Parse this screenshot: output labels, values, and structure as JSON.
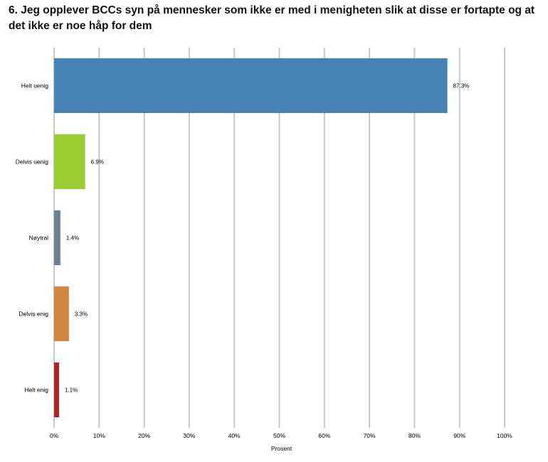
{
  "chart_data": {
    "type": "bar",
    "orientation": "horizontal",
    "title": "6. Jeg opplever BCCs syn på mennesker som ikke er med i menigheten slik at disse er fortapte og at det ikke er noe håp for dem",
    "xlabel": "Prosent",
    "ylabel": "",
    "xlim": [
      0,
      100
    ],
    "x_ticks": [
      0,
      10,
      20,
      30,
      40,
      50,
      60,
      70,
      80,
      90,
      100
    ],
    "x_tick_labels": [
      "0%",
      "10%",
      "20%",
      "30%",
      "40%",
      "50%",
      "60%",
      "70%",
      "80%",
      "90%",
      "100%"
    ],
    "grid": "vertical",
    "legend": "none",
    "categories": [
      "Helt uenig",
      "Delvis uenig",
      "Nøytral",
      "Delvis enig",
      "Helt enig"
    ],
    "values": [
      87.3,
      6.9,
      1.4,
      3.3,
      1.1
    ],
    "value_labels": [
      "87.3%",
      "6.9%",
      "1.4%",
      "3.3%",
      "1.1%"
    ],
    "colors": [
      "#4682b4",
      "#9acd32",
      "#708090",
      "#d2873f",
      "#b22222"
    ]
  }
}
